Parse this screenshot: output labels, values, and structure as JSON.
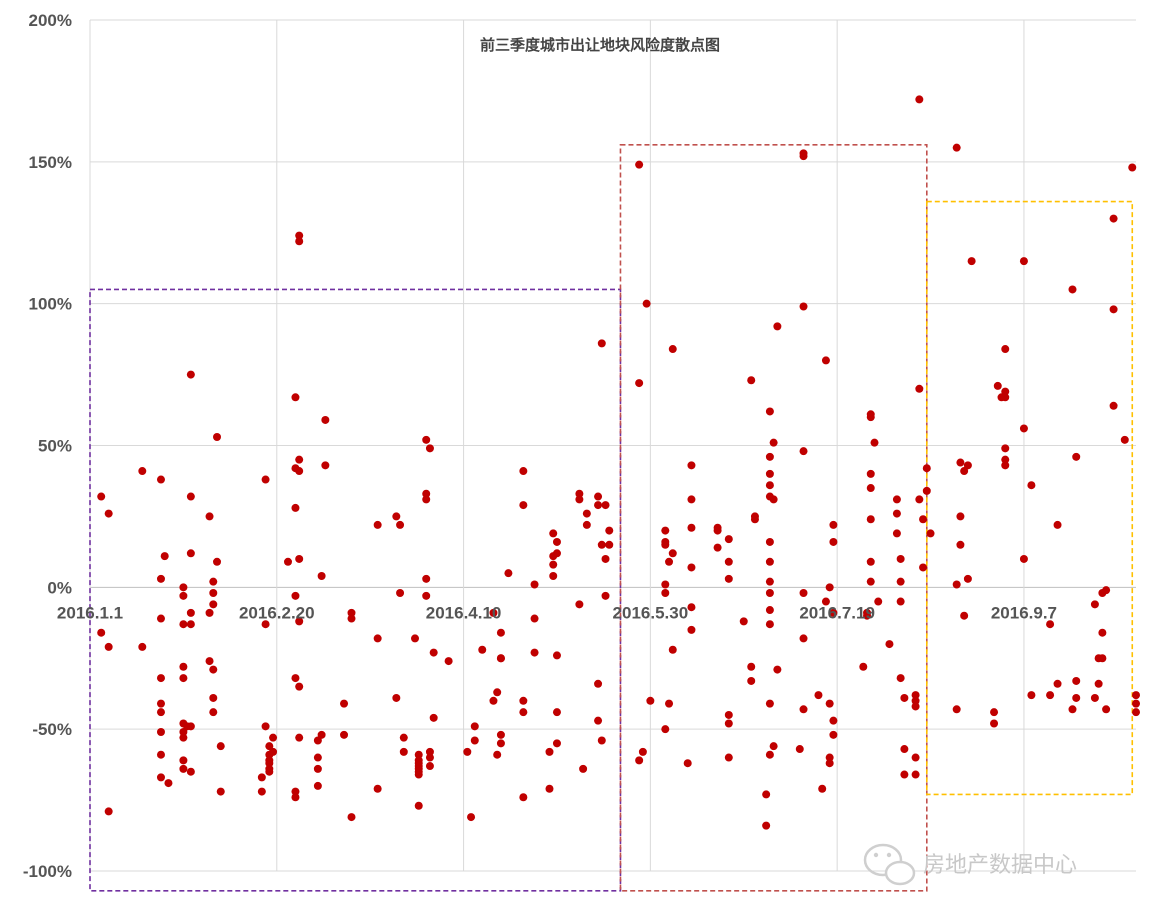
{
  "chart_data": {
    "type": "scatter",
    "title": "前三季度城市出让地块风险度散点图",
    "xlabel": "",
    "ylabel": "",
    "x_tick_labels": [
      "2016.1.1",
      "2016.2.20",
      "2016.4.10",
      "2016.5.30",
      "2016.7.19",
      "2016.9.7"
    ],
    "x_range_days": [
      0,
      280
    ],
    "x_tick_days": [
      0,
      50,
      100,
      150,
      200,
      250
    ],
    "ylim": [
      -1.0,
      2.0
    ],
    "y_ticks": [
      -1.0,
      -0.5,
      0.0,
      0.5,
      1.0,
      1.5,
      2.0
    ],
    "y_tick_labels": [
      "-100%",
      "-50%",
      "0%",
      "50%",
      "100%",
      "150%",
      "200%"
    ],
    "grid": true,
    "marker_color": "#c00000",
    "highlight_boxes": [
      {
        "x_from": 0,
        "x_to": 142,
        "y_from": -1.07,
        "y_to": 1.05,
        "color": "#7030a0"
      },
      {
        "x_from": 142,
        "x_to": 224,
        "y_from": -1.07,
        "y_to": 1.56,
        "color": "#c0504d"
      },
      {
        "x_from": 224,
        "x_to": 279,
        "y_from": -0.73,
        "y_to": 1.36,
        "color": "#ffc000"
      }
    ],
    "points": [
      [
        3,
        0.32
      ],
      [
        3,
        -0.16
      ],
      [
        5,
        0.26
      ],
      [
        5,
        -0.21
      ],
      [
        5,
        -0.79
      ],
      [
        14,
        0.41
      ],
      [
        14,
        -0.21
      ],
      [
        19,
        0.38
      ],
      [
        19,
        -0.11
      ],
      [
        19,
        0.03
      ],
      [
        19,
        -0.32
      ],
      [
        19,
        -0.41
      ],
      [
        19,
        -0.44
      ],
      [
        19,
        -0.51
      ],
      [
        19,
        -0.59
      ],
      [
        19,
        -0.67
      ],
      [
        20,
        0.11
      ],
      [
        21,
        -0.69
      ],
      [
        25,
        0.0
      ],
      [
        25,
        -0.03
      ],
      [
        25,
        -0.13
      ],
      [
        25,
        -0.28
      ],
      [
        25,
        -0.32
      ],
      [
        25,
        -0.48
      ],
      [
        25,
        -0.51
      ],
      [
        25,
        -0.53
      ],
      [
        25,
        -0.61
      ],
      [
        25,
        -0.64
      ],
      [
        26,
        -0.49
      ],
      [
        27,
        0.75
      ],
      [
        27,
        0.32
      ],
      [
        27,
        0.12
      ],
      [
        27,
        -0.09
      ],
      [
        27,
        -0.13
      ],
      [
        27,
        -0.49
      ],
      [
        27,
        -0.65
      ],
      [
        32,
        0.25
      ],
      [
        32,
        -0.09
      ],
      [
        32,
        -0.26
      ],
      [
        33,
        0.02
      ],
      [
        33,
        -0.02
      ],
      [
        33,
        -0.06
      ],
      [
        33,
        -0.29
      ],
      [
        33,
        -0.39
      ],
      [
        33,
        -0.44
      ],
      [
        34,
        0.53
      ],
      [
        34,
        0.09
      ],
      [
        35,
        -0.56
      ],
      [
        35,
        -0.72
      ],
      [
        46,
        -0.67
      ],
      [
        46,
        -0.72
      ],
      [
        47,
        0.38
      ],
      [
        47,
        -0.13
      ],
      [
        47,
        -0.49
      ],
      [
        48,
        -0.56
      ],
      [
        48,
        -0.59
      ],
      [
        48,
        -0.61
      ],
      [
        48,
        -0.62
      ],
      [
        48,
        -0.64
      ],
      [
        48,
        -0.65
      ],
      [
        49,
        -0.53
      ],
      [
        49,
        -0.58
      ],
      [
        53,
        0.09
      ],
      [
        55,
        0.67
      ],
      [
        55,
        0.42
      ],
      [
        55,
        0.28
      ],
      [
        55,
        -0.03
      ],
      [
        55,
        -0.32
      ],
      [
        55,
        -0.72
      ],
      [
        55,
        -0.74
      ],
      [
        56,
        1.24
      ],
      [
        56,
        1.22
      ],
      [
        56,
        0.45
      ],
      [
        56,
        0.41
      ],
      [
        56,
        0.1
      ],
      [
        56,
        -0.12
      ],
      [
        56,
        -0.35
      ],
      [
        56,
        -0.53
      ],
      [
        61,
        -0.54
      ],
      [
        61,
        -0.6
      ],
      [
        61,
        -0.64
      ],
      [
        61,
        -0.7
      ],
      [
        62,
        0.04
      ],
      [
        62,
        -0.52
      ],
      [
        63,
        0.59
      ],
      [
        63,
        0.43
      ],
      [
        68,
        -0.41
      ],
      [
        68,
        -0.52
      ],
      [
        70,
        -0.09
      ],
      [
        70,
        -0.11
      ],
      [
        70,
        -0.81
      ],
      [
        77,
        0.22
      ],
      [
        77,
        -0.18
      ],
      [
        77,
        -0.71
      ],
      [
        82,
        0.25
      ],
      [
        82,
        -0.39
      ],
      [
        83,
        0.22
      ],
      [
        83,
        -0.02
      ],
      [
        84,
        -0.53
      ],
      [
        84,
        -0.58
      ],
      [
        87,
        -0.18
      ],
      [
        88,
        -0.59
      ],
      [
        88,
        -0.61
      ],
      [
        88,
        -0.62
      ],
      [
        88,
        -0.63
      ],
      [
        88,
        -0.64
      ],
      [
        88,
        -0.65
      ],
      [
        88,
        -0.66
      ],
      [
        88,
        -0.77
      ],
      [
        90,
        0.52
      ],
      [
        90,
        0.33
      ],
      [
        90,
        0.31
      ],
      [
        90,
        0.03
      ],
      [
        90,
        -0.03
      ],
      [
        91,
        0.49
      ],
      [
        91,
        -0.58
      ],
      [
        91,
        -0.6
      ],
      [
        91,
        -0.63
      ],
      [
        92,
        -0.23
      ],
      [
        92,
        -0.46
      ],
      [
        96,
        -0.26
      ],
      [
        101,
        -0.58
      ],
      [
        102,
        -0.81
      ],
      [
        103,
        -0.49
      ],
      [
        103,
        -0.54
      ],
      [
        105,
        -0.22
      ],
      [
        108,
        -0.4
      ],
      [
        108,
        -0.09
      ],
      [
        109,
        -0.37
      ],
      [
        109,
        -0.59
      ],
      [
        110,
        -0.25
      ],
      [
        110,
        -0.16
      ],
      [
        110,
        -0.25
      ],
      [
        110,
        -0.52
      ],
      [
        110,
        -0.55
      ],
      [
        112,
        0.05
      ],
      [
        116,
        0.41
      ],
      [
        116,
        0.29
      ],
      [
        116,
        -0.4
      ],
      [
        116,
        -0.44
      ],
      [
        116,
        -0.74
      ],
      [
        119,
        0.01
      ],
      [
        119,
        -0.11
      ],
      [
        119,
        -0.23
      ],
      [
        123,
        -0.58
      ],
      [
        123,
        -0.71
      ],
      [
        124,
        0.19
      ],
      [
        124,
        0.11
      ],
      [
        124,
        0.08
      ],
      [
        124,
        0.04
      ],
      [
        125,
        0.16
      ],
      [
        125,
        0.12
      ],
      [
        125,
        -0.24
      ],
      [
        125,
        -0.44
      ],
      [
        125,
        -0.55
      ],
      [
        131,
        0.33
      ],
      [
        131,
        0.31
      ],
      [
        131,
        -0.06
      ],
      [
        132,
        -0.64
      ],
      [
        133,
        0.26
      ],
      [
        133,
        0.22
      ],
      [
        136,
        0.32
      ],
      [
        136,
        0.29
      ],
      [
        136,
        -0.34
      ],
      [
        136,
        -0.47
      ],
      [
        137,
        0.86
      ],
      [
        137,
        0.15
      ],
      [
        137,
        -0.54
      ],
      [
        138,
        0.29
      ],
      [
        138,
        0.1
      ],
      [
        138,
        -0.03
      ],
      [
        139,
        0.2
      ],
      [
        139,
        0.15
      ],
      [
        147,
        1.49
      ],
      [
        147,
        0.72
      ],
      [
        147,
        -0.61
      ],
      [
        148,
        -0.58
      ],
      [
        149,
        1.0
      ],
      [
        150,
        -0.4
      ],
      [
        154,
        0.2
      ],
      [
        154,
        0.16
      ],
      [
        154,
        0.15
      ],
      [
        154,
        0.01
      ],
      [
        154,
        -0.02
      ],
      [
        154,
        -0.5
      ],
      [
        155,
        0.09
      ],
      [
        155,
        -0.41
      ],
      [
        156,
        0.84
      ],
      [
        156,
        0.12
      ],
      [
        156,
        -0.22
      ],
      [
        161,
        0.43
      ],
      [
        161,
        0.31
      ],
      [
        161,
        0.21
      ],
      [
        161,
        0.07
      ],
      [
        161,
        -0.07
      ],
      [
        161,
        -0.15
      ],
      [
        160,
        -0.62
      ],
      [
        168,
        0.21
      ],
      [
        168,
        0.2
      ],
      [
        168,
        0.14
      ],
      [
        171,
        0.17
      ],
      [
        171,
        0.09
      ],
      [
        171,
        0.03
      ],
      [
        171,
        -0.45
      ],
      [
        171,
        -0.48
      ],
      [
        171,
        -0.6
      ],
      [
        175,
        -0.12
      ],
      [
        177,
        0.73
      ],
      [
        177,
        -0.28
      ],
      [
        177,
        -0.33
      ],
      [
        178,
        0.25
      ],
      [
        178,
        0.24
      ],
      [
        181,
        -0.84
      ],
      [
        181,
        -0.73
      ],
      [
        182,
        0.62
      ],
      [
        182,
        0.46
      ],
      [
        182,
        0.4
      ],
      [
        182,
        0.36
      ],
      [
        182,
        0.32
      ],
      [
        182,
        0.16
      ],
      [
        182,
        0.09
      ],
      [
        182,
        0.02
      ],
      [
        182,
        -0.02
      ],
      [
        182,
        -0.08
      ],
      [
        182,
        -0.13
      ],
      [
        182,
        -0.41
      ],
      [
        182,
        -0.59
      ],
      [
        183,
        0.51
      ],
      [
        183,
        0.31
      ],
      [
        183,
        -0.56
      ],
      [
        184,
        0.92
      ],
      [
        184,
        -0.29
      ],
      [
        191,
        1.53
      ],
      [
        191,
        1.52
      ],
      [
        191,
        0.99
      ],
      [
        191,
        0.48
      ],
      [
        191,
        -0.02
      ],
      [
        191,
        -0.18
      ],
      [
        191,
        -0.43
      ],
      [
        190,
        -0.57
      ],
      [
        195,
        -0.38
      ],
      [
        196,
        -0.71
      ],
      [
        197,
        0.8
      ],
      [
        197,
        -0.05
      ],
      [
        198,
        0.0
      ],
      [
        198,
        -0.41
      ],
      [
        198,
        -0.6
      ],
      [
        198,
        -0.62
      ],
      [
        199,
        0.22
      ],
      [
        199,
        0.16
      ],
      [
        199,
        -0.09
      ],
      [
        199,
        -0.47
      ],
      [
        199,
        -0.52
      ],
      [
        207,
        -0.28
      ],
      [
        208,
        -0.09
      ],
      [
        208,
        -0.1
      ],
      [
        209,
        0.61
      ],
      [
        209,
        0.6
      ],
      [
        209,
        0.4
      ],
      [
        209,
        0.35
      ],
      [
        209,
        0.24
      ],
      [
        209,
        0.09
      ],
      [
        209,
        0.02
      ],
      [
        210,
        0.51
      ],
      [
        211,
        -0.05
      ],
      [
        214,
        -0.2
      ],
      [
        216,
        0.31
      ],
      [
        216,
        0.26
      ],
      [
        216,
        0.19
      ],
      [
        217,
        0.1
      ],
      [
        217,
        0.02
      ],
      [
        217,
        -0.05
      ],
      [
        217,
        -0.32
      ],
      [
        218,
        -0.39
      ],
      [
        218,
        -0.57
      ],
      [
        218,
        -0.66
      ],
      [
        221,
        -0.38
      ],
      [
        221,
        -0.4
      ],
      [
        221,
        -0.42
      ],
      [
        221,
        -0.6
      ],
      [
        221,
        -0.66
      ],
      [
        222,
        1.72
      ],
      [
        222,
        0.7
      ],
      [
        222,
        0.31
      ],
      [
        223,
        0.24
      ],
      [
        223,
        0.07
      ],
      [
        224,
        0.42
      ],
      [
        224,
        0.34
      ],
      [
        225,
        0.19
      ],
      [
        232,
        1.55
      ],
      [
        232,
        0.01
      ],
      [
        232,
        -0.43
      ],
      [
        233,
        0.44
      ],
      [
        233,
        0.25
      ],
      [
        233,
        0.15
      ],
      [
        234,
        0.41
      ],
      [
        234,
        -0.1
      ],
      [
        235,
        0.43
      ],
      [
        235,
        0.03
      ],
      [
        236,
        1.15
      ],
      [
        242,
        -0.44
      ],
      [
        242,
        -0.48
      ],
      [
        243,
        0.71
      ],
      [
        244,
        0.67
      ],
      [
        245,
        0.84
      ],
      [
        245,
        0.69
      ],
      [
        245,
        0.67
      ],
      [
        245,
        0.49
      ],
      [
        245,
        0.45
      ],
      [
        245,
        0.43
      ],
      [
        250,
        1.15
      ],
      [
        250,
        0.56
      ],
      [
        250,
        0.1
      ],
      [
        252,
        0.36
      ],
      [
        252,
        -0.38
      ],
      [
        257,
        -0.38
      ],
      [
        257,
        -0.13
      ],
      [
        259,
        0.22
      ],
      [
        259,
        -0.34
      ],
      [
        263,
        1.05
      ],
      [
        263,
        -0.43
      ],
      [
        264,
        0.46
      ],
      [
        264,
        -0.33
      ],
      [
        264,
        -0.39
      ],
      [
        269,
        -0.06
      ],
      [
        269,
        -0.39
      ],
      [
        270,
        -0.25
      ],
      [
        270,
        -0.34
      ],
      [
        271,
        -0.02
      ],
      [
        271,
        -0.16
      ],
      [
        271,
        -0.25
      ],
      [
        272,
        -0.01
      ],
      [
        272,
        -0.43
      ],
      [
        274,
        1.3
      ],
      [
        274,
        0.98
      ],
      [
        274,
        0.64
      ],
      [
        277,
        0.52
      ],
      [
        279,
        1.48
      ],
      [
        280,
        -0.38
      ],
      [
        280,
        -0.41
      ],
      [
        280,
        -0.44
      ]
    ]
  },
  "watermark": {
    "text": "房地产数据中心",
    "icon": "wechat-icon"
  }
}
